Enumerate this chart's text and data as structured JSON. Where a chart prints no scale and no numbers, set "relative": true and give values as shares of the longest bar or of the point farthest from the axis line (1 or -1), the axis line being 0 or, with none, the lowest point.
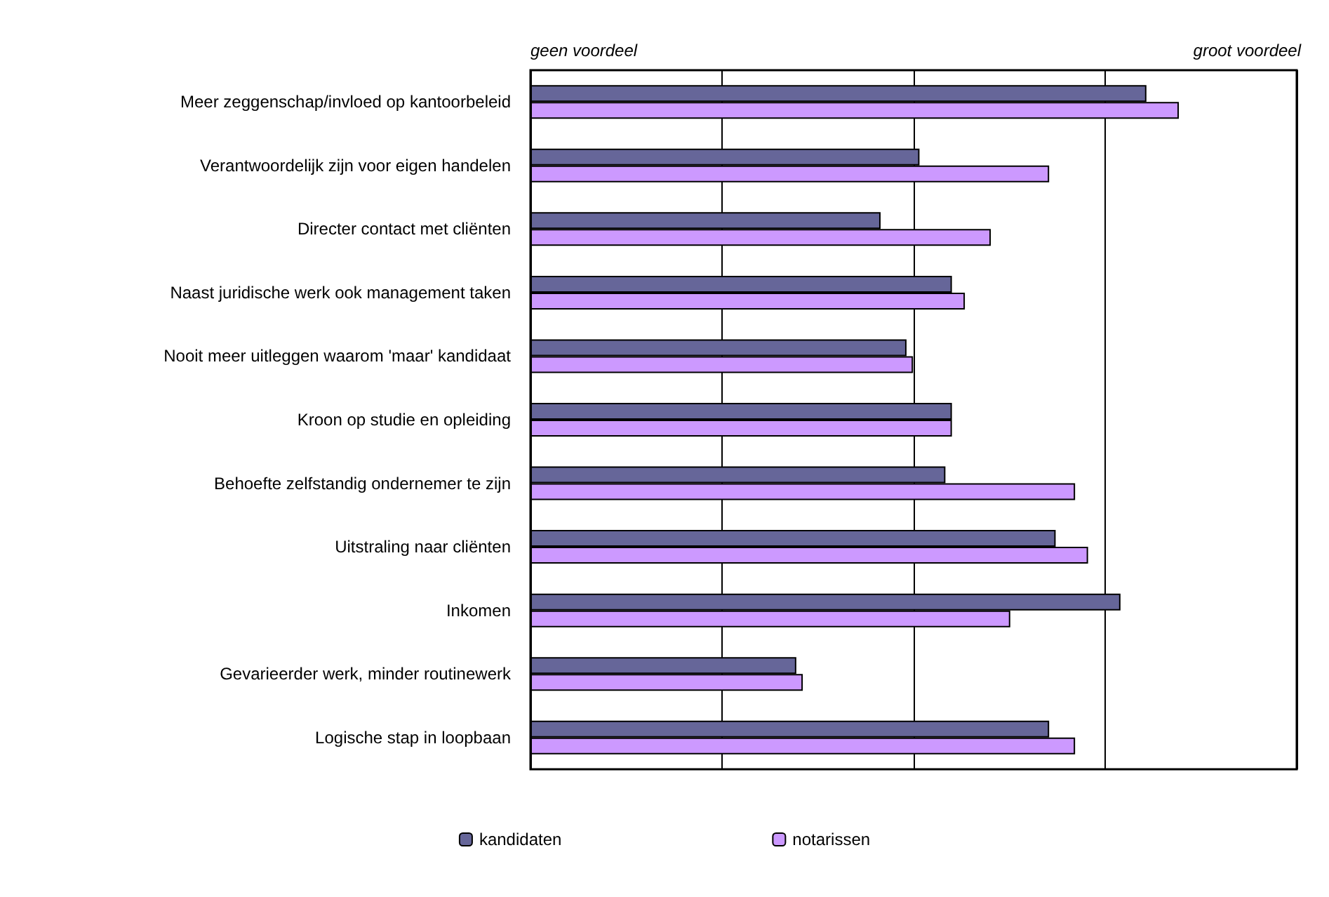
{
  "chart_data": {
    "type": "bar",
    "orientation": "horizontal",
    "relative": true,
    "grid": "x",
    "legend": "bottom",
    "categories": [
      "Meer zeggenschap/invloed op kantoorbeleid",
      "Verantwoordelijk zijn voor eigen handelen",
      "Directer contact met cliënten",
      "Naast juridische werk ook management taken",
      "Nooit meer uitleggen waarom 'maar' kandidaat",
      "Kroon op studie en opleiding",
      "Behoefte zelfstandig ondernemer te zijn",
      "Uitstraling naar cliënten",
      "Inkomen",
      "Gevarieerder werk, minder routinewerk",
      "Logische stap in loopbaan"
    ],
    "series": [
      {
        "name": "kandidaten",
        "color": "#666699",
        "values": [
          0.95,
          0.6,
          0.54,
          0.65,
          0.58,
          0.65,
          0.64,
          0.81,
          0.91,
          0.41,
          0.8
        ]
      },
      {
        "name": "notarissen",
        "color": "#cc99ff",
        "values": [
          1.0,
          0.8,
          0.71,
          0.67,
          0.59,
          0.65,
          0.84,
          0.86,
          0.74,
          0.42,
          0.84
        ]
      }
    ],
    "annotations": [
      "geen voordeel",
      "groot voordeel"
    ]
  }
}
